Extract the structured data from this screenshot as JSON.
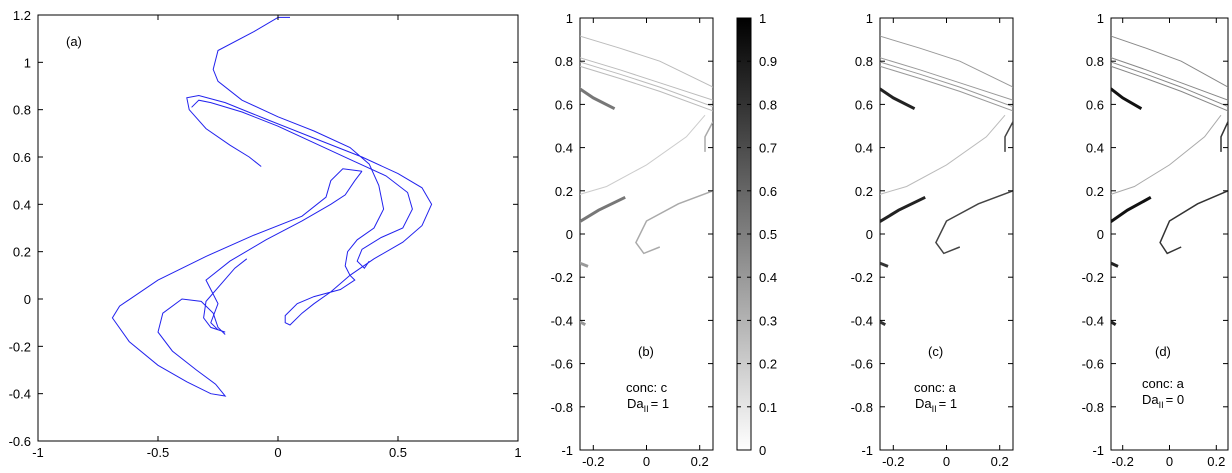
{
  "chart_data": [
    {
      "id": "a",
      "type": "line",
      "annotation": "(a)",
      "xlim": [
        -1,
        1
      ],
      "ylim": [
        -0.6,
        1.2
      ],
      "xticks": [
        "-1",
        "-0.5",
        "0",
        "0.5",
        "1"
      ],
      "yticks": [
        "-0.6",
        "-0.4",
        "-0.2",
        "0",
        "0.2",
        "0.4",
        "0.6",
        "0.8",
        "1",
        "1.2"
      ],
      "line_color": "#2222ee",
      "curves": [
        [
          [
            0.0,
            1.19
          ],
          [
            -0.1,
            1.13
          ],
          [
            -0.25,
            1.05
          ],
          [
            -0.27,
            0.97
          ],
          [
            -0.25,
            0.92
          ],
          [
            -0.15,
            0.84
          ],
          [
            0.0,
            0.77
          ],
          [
            0.15,
            0.71
          ],
          [
            0.3,
            0.64
          ],
          [
            0.38,
            0.57
          ],
          [
            0.42,
            0.48
          ],
          [
            0.44,
            0.38
          ],
          [
            0.4,
            0.3
          ],
          [
            0.33,
            0.25
          ],
          [
            0.29,
            0.2
          ],
          [
            0.28,
            0.14
          ],
          [
            0.3,
            0.1
          ],
          [
            0.32,
            0.08
          ],
          [
            0.26,
            0.04
          ],
          [
            0.15,
            0.01
          ],
          [
            0.08,
            -0.02
          ],
          [
            0.03,
            -0.07
          ],
          [
            0.03,
            -0.1
          ],
          [
            0.05,
            -0.11
          ],
          [
            0.1,
            -0.06
          ],
          [
            0.15,
            -0.02
          ],
          [
            0.22,
            0.03
          ],
          [
            0.3,
            0.1
          ],
          [
            0.4,
            0.17
          ],
          [
            0.52,
            0.24
          ],
          [
            0.6,
            0.31
          ],
          [
            0.64,
            0.4
          ],
          [
            0.6,
            0.47
          ],
          [
            0.5,
            0.53
          ],
          [
            0.35,
            0.6
          ],
          [
            0.15,
            0.68
          ],
          [
            -0.05,
            0.76
          ],
          [
            -0.22,
            0.83
          ],
          [
            -0.33,
            0.86
          ],
          [
            -0.38,
            0.85
          ],
          [
            -0.37,
            0.8
          ],
          [
            -0.3,
            0.72
          ],
          [
            -0.2,
            0.65
          ],
          [
            -0.12,
            0.6
          ],
          [
            -0.07,
            0.56
          ]
        ],
        [
          [
            -0.36,
            0.81
          ],
          [
            -0.33,
            0.84
          ],
          [
            -0.28,
            0.83
          ],
          [
            -0.15,
            0.79
          ],
          [
            0.0,
            0.73
          ],
          [
            0.15,
            0.66
          ],
          [
            0.3,
            0.59
          ],
          [
            0.45,
            0.52
          ],
          [
            0.54,
            0.45
          ],
          [
            0.56,
            0.38
          ],
          [
            0.52,
            0.3
          ],
          [
            0.43,
            0.26
          ],
          [
            0.35,
            0.21
          ],
          [
            0.33,
            0.16
          ],
          [
            0.36,
            0.13
          ],
          [
            0.38,
            0.16
          ]
        ],
        [
          [
            0.0,
            1.19
          ],
          [
            0.05,
            1.19
          ]
        ],
        [
          [
            0.35,
            0.54
          ],
          [
            0.27,
            0.55
          ],
          [
            0.22,
            0.5
          ],
          [
            0.2,
            0.43
          ],
          [
            0.1,
            0.35
          ],
          [
            -0.1,
            0.27
          ],
          [
            -0.3,
            0.18
          ],
          [
            -0.5,
            0.08
          ],
          [
            -0.66,
            -0.03
          ],
          [
            -0.69,
            -0.08
          ],
          [
            -0.62,
            -0.18
          ],
          [
            -0.5,
            -0.28
          ],
          [
            -0.38,
            -0.35
          ],
          [
            -0.28,
            -0.4
          ],
          [
            -0.22,
            -0.41
          ],
          [
            -0.26,
            -0.36
          ],
          [
            -0.34,
            -0.3
          ],
          [
            -0.44,
            -0.22
          ],
          [
            -0.5,
            -0.14
          ],
          [
            -0.48,
            -0.06
          ],
          [
            -0.4,
            0.0
          ],
          [
            -0.32,
            -0.01
          ],
          [
            -0.27,
            -0.06
          ],
          [
            -0.25,
            -0.12
          ],
          [
            -0.22,
            -0.15
          ]
        ],
        [
          [
            0.35,
            0.54
          ],
          [
            0.32,
            0.5
          ],
          [
            0.28,
            0.44
          ],
          [
            0.22,
            0.4
          ],
          [
            0.1,
            0.33
          ],
          [
            -0.05,
            0.25
          ],
          [
            -0.2,
            0.16
          ],
          [
            -0.3,
            0.08
          ],
          [
            -0.28,
            0.04
          ],
          [
            -0.25,
            -0.02
          ],
          [
            -0.28,
            -0.1
          ],
          [
            -0.25,
            -0.13
          ]
        ],
        [
          [
            -0.13,
            0.17
          ],
          [
            -0.18,
            0.13
          ],
          [
            -0.24,
            0.06
          ],
          [
            -0.3,
            -0.01
          ],
          [
            -0.31,
            -0.08
          ],
          [
            -0.28,
            -0.12
          ],
          [
            -0.22,
            -0.14
          ]
        ]
      ]
    },
    {
      "id": "b",
      "type": "heatmap",
      "xlim": [
        -0.25,
        0.25
      ],
      "ylim": [
        -1,
        1
      ],
      "xticks": [
        "-0.2",
        "0",
        "0.2"
      ],
      "yticks": [
        "-1",
        "-0.8",
        "-0.6",
        "-0.4",
        "-0.2",
        "0",
        "0.2",
        "0.4",
        "0.6",
        "0.8",
        "1"
      ],
      "panel_label": "(b)",
      "conc_label": "conc: c",
      "da_main": "Da",
      "da_sub": "II",
      "da_value": "= 1",
      "colorbar": {
        "ticks": [
          "0",
          "0.1",
          "0.2",
          "0.3",
          "0.4",
          "0.5",
          "0.6",
          "0.7",
          "0.8",
          "0.9",
          "1"
        ],
        "range": [
          0,
          1
        ]
      }
    },
    {
      "id": "c",
      "type": "heatmap",
      "xlim": [
        -0.25,
        0.25
      ],
      "ylim": [
        -1,
        1
      ],
      "xticks": [
        "-0.2",
        "0",
        "0.2"
      ],
      "yticks": [
        "-1",
        "-0.8",
        "-0.6",
        "-0.4",
        "-0.2",
        "0",
        "0.2",
        "0.4",
        "0.6",
        "0.8",
        "1"
      ],
      "panel_label": "(c)",
      "conc_label": "conc: a",
      "da_main": "Da",
      "da_sub": "II",
      "da_value": "= 1"
    },
    {
      "id": "d",
      "type": "heatmap",
      "xlim": [
        -0.25,
        0.25
      ],
      "ylim": [
        -1,
        1
      ],
      "xticks": [
        "-0.2",
        "0",
        "0.2"
      ],
      "yticks": [
        "-1",
        "-0.8",
        "-0.6",
        "-0.4",
        "-0.2",
        "0",
        "0.2",
        "0.4",
        "0.6",
        "0.8",
        "1"
      ],
      "panel_label": "(d)",
      "conc_label": "conc: a",
      "da_main": "Da",
      "da_sub": "II",
      "da_value": "= 0"
    }
  ]
}
